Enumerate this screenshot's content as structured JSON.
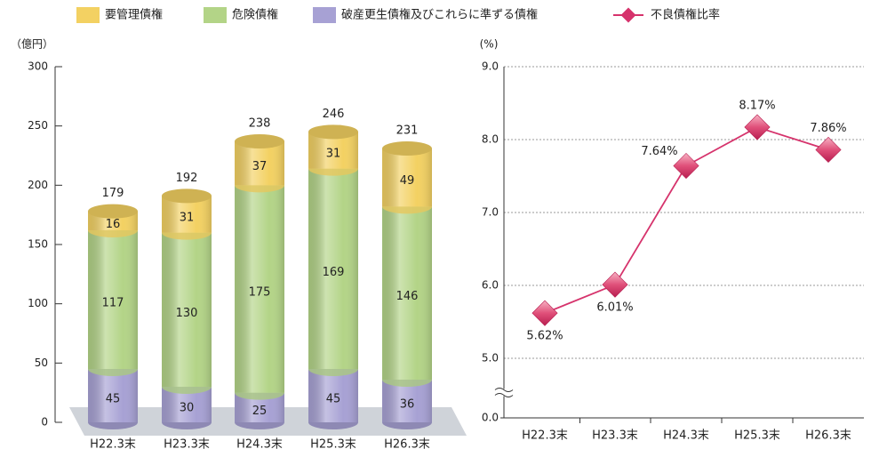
{
  "chart_data": [
    {
      "type": "stacked_bar",
      "y_label": "（億円）",
      "categories": [
        "H22.3末",
        "H23.3末",
        "H24.3末",
        "H25.3末",
        "H26.3末"
      ],
      "series": [
        {
          "name": "破産更生債権及びこれらに準ずる債権",
          "color": "#a7a1d4",
          "values": [
            45,
            30,
            25,
            45,
            36
          ]
        },
        {
          "name": "危険債権",
          "color": "#b3d487",
          "values": [
            117,
            130,
            175,
            169,
            146
          ]
        },
        {
          "name": "要管理債権",
          "color": "#f3d162",
          "values": [
            16,
            31,
            37,
            31,
            49
          ]
        }
      ],
      "totals": [
        179,
        192,
        238,
        246,
        231
      ],
      "ylim": [
        0,
        300
      ],
      "yticks": [
        0,
        50,
        100,
        150,
        200,
        250,
        300
      ]
    },
    {
      "type": "line",
      "y_label": "(%)",
      "categories": [
        "H22.3末",
        "H23.3末",
        "H24.3末",
        "H25.3末",
        "H26.3末"
      ],
      "series": [
        {
          "name": "不良債権比率",
          "color": "#d6336c",
          "values": [
            5.62,
            6.01,
            7.64,
            8.17,
            7.86
          ],
          "value_labels": [
            "5.62%",
            "6.01%",
            "7.64%",
            "8.17%",
            "7.86%"
          ]
        }
      ],
      "ylim": [
        0,
        9
      ],
      "axis_break": [
        0,
        5
      ],
      "yticks": [
        {
          "value": 0,
          "label": "0.0"
        },
        {
          "value": 5,
          "label": "5.0"
        },
        {
          "value": 6,
          "label": "6.0"
        },
        {
          "value": 7,
          "label": "7.0"
        },
        {
          "value": 8,
          "label": "8.0"
        },
        {
          "value": 9,
          "label": "9.0"
        }
      ],
      "grid": true
    }
  ]
}
